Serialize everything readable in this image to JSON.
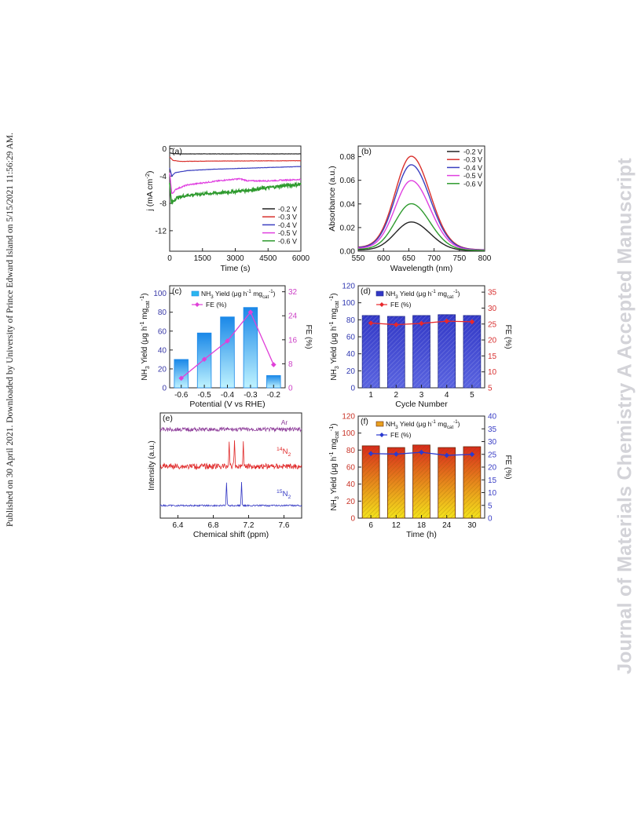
{
  "left_note": "Published on 30 April 2021. Downloaded by University of Prince Edward Island on 5/15/2021 11:56:29 AM.",
  "right_watermark": "Journal of Materials Chemistry A Accepted Manuscript",
  "chart_data": [
    {
      "panel": "(a)",
      "type": "line",
      "xlabel": "Time (s)",
      "ylabel": "j (mA cm⁻²)",
      "xlim": [
        0,
        6000
      ],
      "ylim": [
        -15,
        0.4
      ],
      "xticks": [
        0,
        1500,
        3000,
        4500,
        6000
      ],
      "yticks": [
        0,
        -4,
        -8,
        -12
      ],
      "legend": "bottom-right",
      "series": [
        {
          "name": "-0.2 V",
          "color": "#222222",
          "points": [
            [
              0,
              -0.6
            ],
            [
              150,
              -0.7
            ],
            [
              500,
              -0.75
            ],
            [
              6000,
              -0.75
            ]
          ]
        },
        {
          "name": "-0.3 V",
          "color": "#d9302c",
          "points": [
            [
              0,
              -1.2
            ],
            [
              150,
              -1.7
            ],
            [
              500,
              -1.85
            ],
            [
              2000,
              -1.8
            ],
            [
              6000,
              -1.75
            ]
          ]
        },
        {
          "name": "-0.4 V",
          "color": "#3b3fc0",
          "points": [
            [
              0,
              -2.8
            ],
            [
              100,
              -4.0
            ],
            [
              250,
              -3.5
            ],
            [
              800,
              -3.2
            ],
            [
              2000,
              -3.0
            ],
            [
              4000,
              -2.8
            ],
            [
              6000,
              -2.6
            ]
          ]
        },
        {
          "name": "-0.5 V",
          "color": "#e040e0",
          "points": [
            [
              0,
              -3.5
            ],
            [
              100,
              -6.6
            ],
            [
              300,
              -5.9
            ],
            [
              800,
              -5.3
            ],
            [
              1500,
              -5.0
            ],
            [
              2500,
              -4.6
            ],
            [
              3200,
              -4.4
            ],
            [
              3600,
              -4.7
            ],
            [
              4500,
              -4.7
            ],
            [
              5200,
              -4.6
            ],
            [
              6000,
              -4.5
            ]
          ]
        },
        {
          "name": "-0.6 V",
          "color": "#2e9a2e",
          "points": [
            [
              0,
              -5.0
            ],
            [
              80,
              -8.0
            ],
            [
              300,
              -7.2
            ],
            [
              800,
              -6.8
            ],
            [
              1500,
              -6.6
            ],
            [
              2500,
              -6.4
            ],
            [
              3500,
              -6.1
            ],
            [
              4500,
              -5.7
            ],
            [
              5200,
              -5.4
            ],
            [
              6000,
              -5.2
            ]
          ]
        }
      ]
    },
    {
      "panel": "(b)",
      "type": "line",
      "xlabel": "Wavelength (nm)",
      "ylabel": "Absorbance (a.u.)",
      "xlim": [
        550,
        800
      ],
      "ylim": [
        0,
        0.089
      ],
      "xticks": [
        550,
        600,
        650,
        700,
        750,
        800
      ],
      "yticks": [
        0.0,
        0.02,
        0.04,
        0.06,
        0.08
      ],
      "legend": "top-right",
      "peak_wavelength": 655,
      "series": [
        {
          "name": "-0.2 V",
          "color": "#222222",
          "peak": 0.024
        },
        {
          "name": "-0.3 V",
          "color": "#d9302c",
          "peak": 0.078
        },
        {
          "name": "-0.4 V",
          "color": "#3b3fc0",
          "peak": 0.071
        },
        {
          "name": "-0.5 V",
          "color": "#e040e0",
          "peak": 0.058
        },
        {
          "name": "-0.6 V",
          "color": "#2e9a2e",
          "peak": 0.039
        }
      ]
    },
    {
      "panel": "(c)",
      "type": "bar",
      "xlabel": "Potential (V vs RHE)",
      "ylabel": "NH3 Yield (μg h⁻¹ mgcat⁻¹)",
      "ylabel2": "FE (%)",
      "categories": [
        "-0.6",
        "-0.5",
        "-0.4",
        "-0.3",
        "-0.2"
      ],
      "ylim": [
        0,
        108
      ],
      "yticks": [
        0,
        20,
        40,
        60,
        80,
        100
      ],
      "y2lim": [
        0,
        34
      ],
      "y2ticks": [
        0,
        8,
        16,
        24,
        32
      ],
      "series": [
        {
          "name": "NH3 Yield (μg h⁻¹ mgcat⁻¹)",
          "values": [
            30,
            58,
            75,
            85,
            13
          ],
          "color": "#28b7f0"
        },
        {
          "name": "FE (%)",
          "values": [
            3.2,
            9.5,
            15.6,
            25.2,
            7.7
          ],
          "color": "#e040d8"
        }
      ]
    },
    {
      "panel": "(d)",
      "type": "bar",
      "xlabel": "Cycle Number",
      "ylabel": "NH3 Yield (μg h⁻¹ mgcat⁻¹)",
      "ylabel2": "FE (%)",
      "categories": [
        "1",
        "2",
        "3",
        "4",
        "5"
      ],
      "ylim": [
        0,
        120
      ],
      "yticks": [
        0,
        20,
        40,
        60,
        80,
        100,
        120
      ],
      "y2lim": [
        5,
        37
      ],
      "y2ticks": [
        5,
        10,
        15,
        20,
        25,
        30,
        35
      ],
      "series": [
        {
          "name": "NH3 Yield (μg h⁻¹ mgcat⁻¹)",
          "values": [
            85,
            84,
            85,
            86,
            85
          ],
          "color": "#3338c8"
        },
        {
          "name": "FE (%)",
          "values": [
            25.3,
            24.8,
            25.2,
            25.9,
            25.7
          ],
          "color": "#e8282c"
        }
      ]
    },
    {
      "panel": "(e)",
      "type": "line",
      "xlabel": "Chemical shift (ppm)",
      "ylabel": "Intensity (a.u.)",
      "xlim": [
        6.2,
        7.8
      ],
      "xticks": [
        6.4,
        6.8,
        7.2,
        7.6
      ],
      "series": [
        {
          "name": "Ar",
          "color": "#8e3d9a",
          "peaks": []
        },
        {
          "name": "14N2",
          "color": "#e02828",
          "peaks": [
            6.98,
            7.04,
            7.14
          ]
        },
        {
          "name": "15N2",
          "color": "#3438c4",
          "peaks": [
            6.95,
            7.12
          ]
        }
      ]
    },
    {
      "panel": "(f)",
      "type": "bar",
      "xlabel": "Time  (h)",
      "ylabel": "NH3 Yield (μg h⁻¹ mgcat⁻¹)",
      "ylabel2": "FE (%)",
      "categories": [
        "6",
        "12",
        "18",
        "24",
        "30"
      ],
      "ylim": [
        0,
        120
      ],
      "yticks": [
        0,
        20,
        40,
        60,
        80,
        100,
        120
      ],
      "y2lim": [
        0,
        40
      ],
      "y2ticks": [
        0,
        5,
        10,
        15,
        20,
        25,
        30,
        35,
        40
      ],
      "series": [
        {
          "name": "NH3 Yield (μg h⁻¹ mgcat⁻¹)",
          "values": [
            85,
            83,
            86,
            83,
            84
          ],
          "color": "#d8321e"
        },
        {
          "name": "FE (%)",
          "values": [
            25.3,
            25.1,
            25.8,
            24.6,
            25.0
          ],
          "color": "#2a3ad0"
        }
      ]
    }
  ]
}
